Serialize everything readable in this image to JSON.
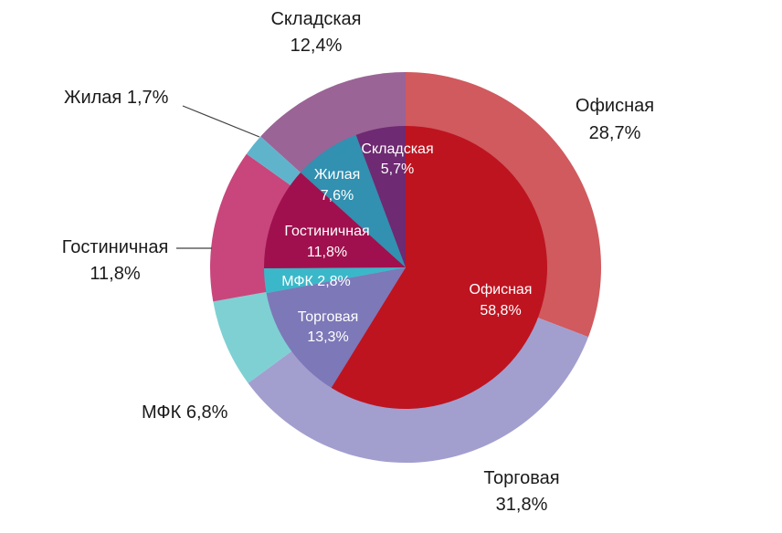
{
  "chart_data": [
    {
      "type": "pie",
      "ring": "outer",
      "slices": [
        {
          "name": "Офисная",
          "value": 28.7,
          "label": "28,7%",
          "color": "#d05a5e"
        },
        {
          "name": "Торговая",
          "value": 31.8,
          "label": "31,8%",
          "color": "#a29fcf"
        },
        {
          "name": "МФК",
          "value": 6.8,
          "label": "6,8%",
          "color": "#7fd0d3"
        },
        {
          "name": "Гостиничная",
          "value": 11.8,
          "label": "11,8%",
          "color": "#c8467c"
        },
        {
          "name": "Жилая",
          "value": 1.7,
          "label": "1,7%",
          "color": "#5fb4cc"
        },
        {
          "name": "Складская",
          "value": 12.4,
          "label": "12,4%",
          "color": "#9b6496"
        }
      ]
    },
    {
      "type": "pie",
      "ring": "inner",
      "slices": [
        {
          "name": "Офисная",
          "value": 58.8,
          "label": "58,8%",
          "color": "#be1420"
        },
        {
          "name": "Торговая",
          "value": 13.3,
          "label": "13,3%",
          "color": "#7d78b8"
        },
        {
          "name": "МФК",
          "value": 2.8,
          "label": "2,8%",
          "color": "#3ab8c9"
        },
        {
          "name": "Гостиничная",
          "value": 11.8,
          "label": "11,8%",
          "color": "#a0104e"
        },
        {
          "name": "Жилая",
          "value": 7.6,
          "label": "7,6%",
          "color": "#3290b0"
        },
        {
          "name": "Складская",
          "value": 5.7,
          "label": "5,7%",
          "color": "#6e2a72"
        }
      ]
    }
  ],
  "outer_labels": {
    "office": {
      "name": "Офисная",
      "value": "28,7%"
    },
    "retail": {
      "name": "Торговая",
      "value": "31,8%"
    },
    "mfc": "МФК 6,8%",
    "hotel": {
      "name": "Гостиничная",
      "value": "11,8%"
    },
    "residential": "Жилая 1,7%",
    "warehouse": {
      "name": "Складская",
      "value": "12,4%"
    }
  },
  "inner_labels": {
    "office": {
      "name": "Офисная",
      "value": "58,8%"
    },
    "retail": {
      "name": "Торговая",
      "value": "13,3%"
    },
    "mfc": "МФК 2,8%",
    "hotel": {
      "name": "Гостиничная",
      "value": "11,8%"
    },
    "residential": {
      "name": "Жилая",
      "value": "7,6%"
    },
    "warehouse": {
      "name": "Складская",
      "value": "5,7%"
    }
  }
}
